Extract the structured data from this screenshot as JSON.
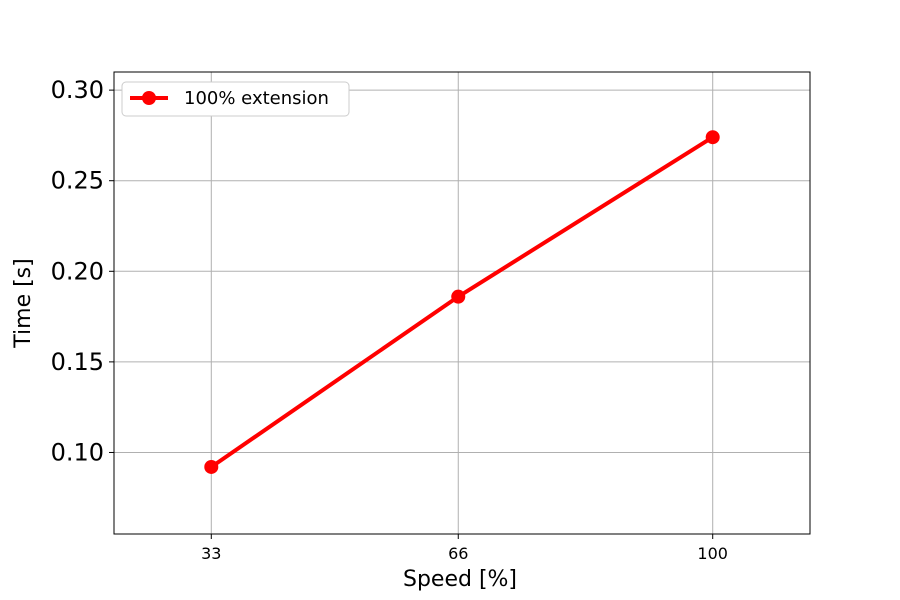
{
  "chart_data": {
    "type": "line",
    "xlabel": "Speed [%]",
    "ylabel": "Time [s]",
    "categories": [
      "33",
      "66",
      "100"
    ],
    "x": [
      33,
      66,
      100
    ],
    "series": [
      {
        "name": "100% extension",
        "color": "#ff0000",
        "marker": "circle",
        "values": [
          0.092,
          0.186,
          0.274
        ]
      }
    ],
    "xlim": [
      20,
      113
    ],
    "ylim": [
      0.055,
      0.31
    ],
    "yticks": [
      0.1,
      0.15,
      0.2,
      0.25,
      0.3
    ],
    "ytick_labels": [
      "0.10",
      "0.15",
      "0.20",
      "0.25",
      "0.30"
    ],
    "grid": true,
    "legend_position": "top-left"
  }
}
